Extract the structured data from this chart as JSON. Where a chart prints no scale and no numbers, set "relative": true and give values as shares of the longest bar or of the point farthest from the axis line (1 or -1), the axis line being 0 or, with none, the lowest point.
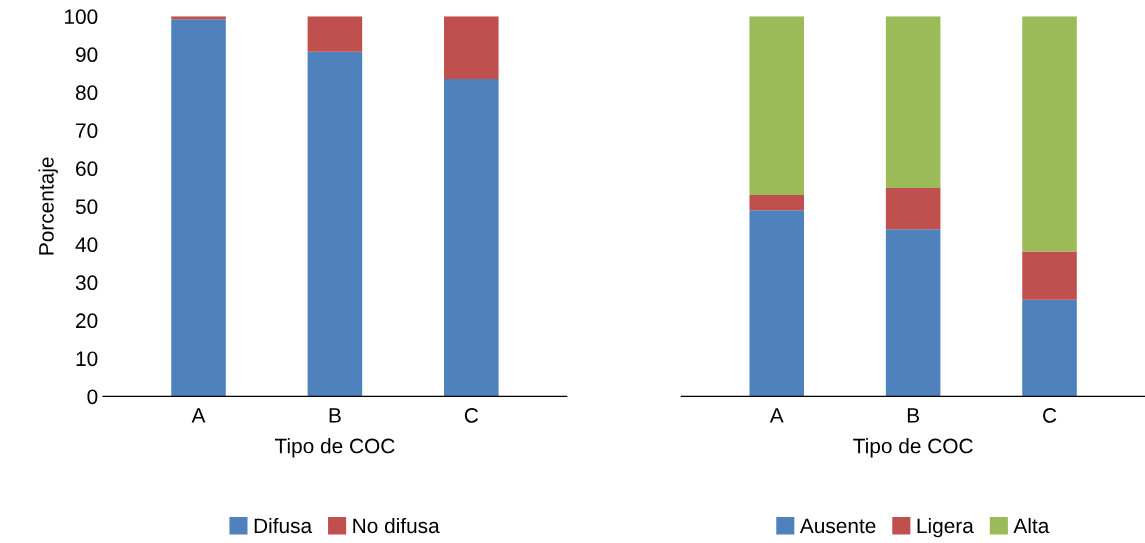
{
  "chart_data": [
    {
      "type": "bar",
      "stacked": true,
      "xlabel": "Tipo de COC",
      "ylabel": "Porcentaje",
      "categories": [
        "A",
        "B",
        "C"
      ],
      "ylim": [
        0,
        100
      ],
      "yticks": [
        0,
        10,
        20,
        30,
        40,
        50,
        60,
        70,
        80,
        90,
        100
      ],
      "legend": "bottom",
      "series": [
        {
          "name": "Difusa",
          "color": "#4f81bd",
          "values": [
            99.2,
            90.7,
            83.5
          ]
        },
        {
          "name": "No difusa",
          "color": "#c0504d",
          "values": [
            0.8,
            9.3,
            16.5
          ]
        }
      ]
    },
    {
      "type": "bar",
      "stacked": true,
      "relative": true,
      "tick_labels": "x",
      "xlabel": "Tipo de COC",
      "categories": [
        "A",
        "B",
        "C"
      ],
      "legend": "bottom",
      "series": [
        {
          "name": "Ausente",
          "color": "#4f81bd",
          "values": [
            0.49,
            0.44,
            0.254
          ]
        },
        {
          "name": "Ligera",
          "color": "#c0504d",
          "values": [
            0.04,
            0.108,
            0.127
          ]
        },
        {
          "name": "Alta",
          "color": "#9bbb59",
          "values": [
            0.47,
            0.452,
            0.619
          ]
        }
      ]
    }
  ]
}
